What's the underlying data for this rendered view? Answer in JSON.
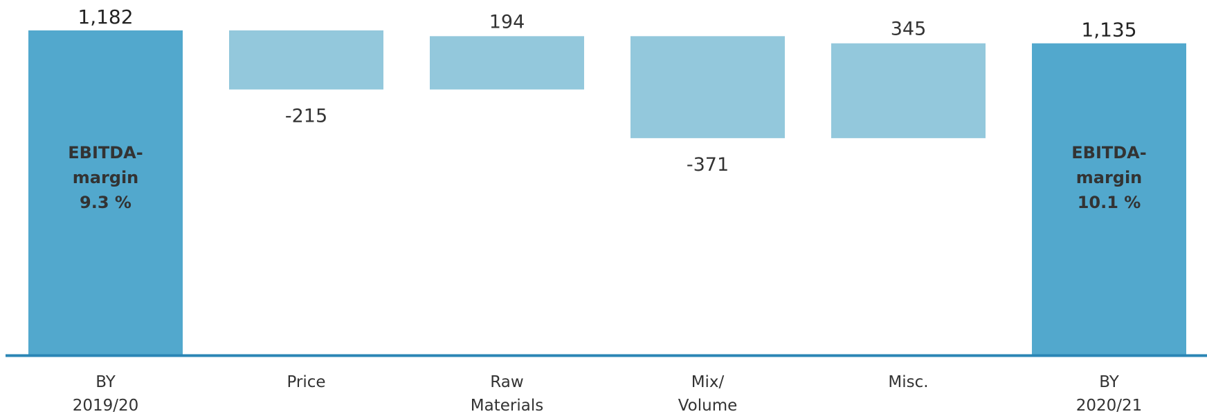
{
  "chart_data": {
    "type": "bar",
    "subtype": "waterfall",
    "title": "",
    "xlabel": "",
    "ylabel": "",
    "categories": [
      [
        "BY",
        "2019/20"
      ],
      [
        "Price"
      ],
      [
        "Raw",
        "Materials"
      ],
      [
        "Mix/",
        "Volume"
      ],
      [
        "Misc."
      ],
      [
        "BY",
        "2020/21"
      ]
    ],
    "bars": [
      {
        "kind": "total",
        "value": 1182,
        "label": "1,182",
        "inside_label": [
          "EBITDA-",
          "margin",
          "9.3 %"
        ]
      },
      {
        "kind": "delta",
        "value": -215,
        "label": "-215"
      },
      {
        "kind": "delta",
        "value": 194,
        "label": "194"
      },
      {
        "kind": "delta",
        "value": -371,
        "label": "-371"
      },
      {
        "kind": "delta",
        "value": 345,
        "label": "345"
      },
      {
        "kind": "total",
        "value": 1135,
        "label": "1,135",
        "inside_label": [
          "EBITDA-",
          "margin",
          "10.1 %"
        ]
      }
    ],
    "colors": {
      "total": "#52a8cd",
      "delta": "#93c8dc",
      "baseline": "#2b86b5"
    },
    "grid": false,
    "legend": "none"
  }
}
